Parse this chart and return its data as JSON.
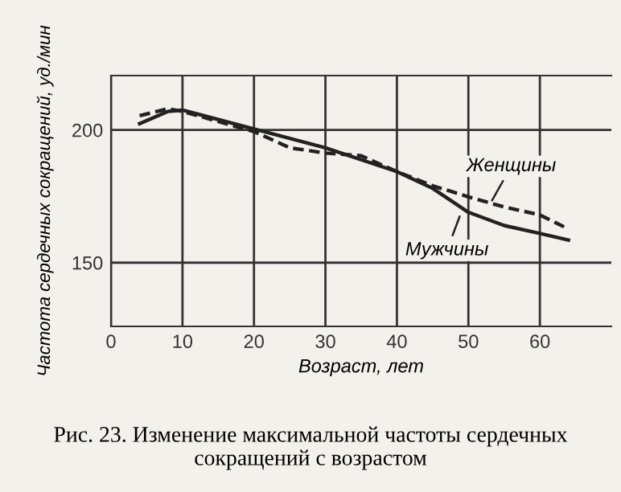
{
  "chart_data": {
    "type": "line",
    "xlabel": "Возраст, лет",
    "ylabel": "Частота сердечных сокращений, уд./мин",
    "xlim": [
      0,
      70
    ],
    "xticks": [
      0,
      10,
      20,
      30,
      40,
      50,
      60
    ],
    "ylim": [
      126,
      220.5
    ],
    "yticks": [
      150,
      200
    ],
    "grid": true,
    "series": [
      {
        "name": "Женщины",
        "color": "#222222",
        "line_style": "dashed",
        "x": [
          4,
          8,
          10,
          20,
          25,
          30,
          35,
          40,
          45,
          50,
          55,
          60,
          64
        ],
        "values": [
          205.4,
          208,
          207,
          199.4,
          193.3,
          191.3,
          190.3,
          184.3,
          179,
          174.8,
          171,
          168,
          162.7
        ]
      },
      {
        "name": "Мужчины",
        "color": "#222222",
        "line_style": "solid",
        "x": [
          4,
          8,
          10,
          20,
          30,
          40,
          45,
          50,
          55,
          60,
          64
        ],
        "values": [
          202.4,
          207,
          207.5,
          200.4,
          193.3,
          184.3,
          178,
          169,
          164,
          161,
          158.5
        ]
      }
    ],
    "annotations": [
      "Рис. 23. Изменение максимальной частоты сердечных сокращений с возрастом"
    ]
  }
}
